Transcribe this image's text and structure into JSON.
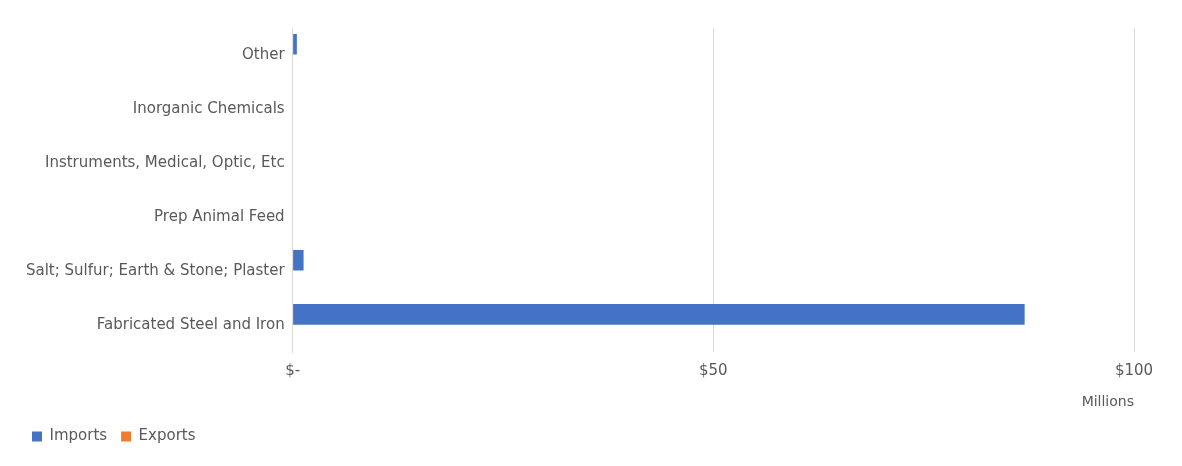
{
  "chart_data": {
    "type": "bar",
    "orientation": "horizontal",
    "categories": [
      "Other",
      "Inorganic Chemicals",
      "Instruments, Medical, Optic, Etc",
      "Prep Animal Feed",
      "Salt; Sulfur; Earth & Stone; Plaster",
      "Fabricated Steel and Iron"
    ],
    "series": [
      {
        "name": "Imports",
        "color": "#4472c4",
        "values": [
          0.5,
          0,
          0,
          0,
          1.3,
          87
        ]
      },
      {
        "name": "Exports",
        "color": "#ed7d31",
        "values": [
          0,
          0,
          0,
          0,
          0,
          0
        ]
      }
    ],
    "xlim": [
      0,
      100
    ],
    "xticks": [
      {
        "value": 0,
        "label": "$-"
      },
      {
        "value": 50,
        "label": "$50"
      },
      {
        "value": 100,
        "label": "$100"
      }
    ],
    "xlabel": "Millions",
    "grid": "x",
    "legend": "bottom left"
  }
}
